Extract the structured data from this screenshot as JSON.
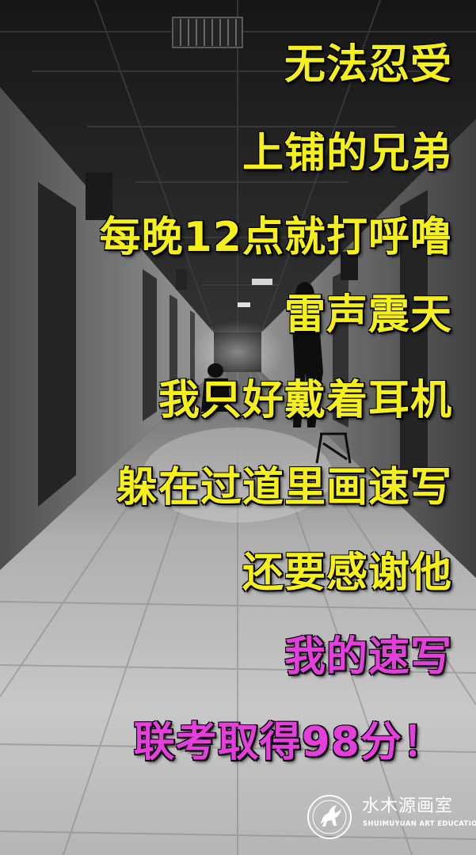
{
  "lines": [
    {
      "text": "无法忍受",
      "color": "#f5ef1c"
    },
    {
      "text": "上铺的兄弟",
      "color": "#f5ef1c"
    },
    {
      "text": "每晚12点就打呼噜",
      "color": "#f5ef1c"
    },
    {
      "text": "雷声震天",
      "color": "#f5ef1c"
    },
    {
      "text": "我只好戴着耳机",
      "color": "#f5ef1c"
    },
    {
      "text": "躲在过道里画速写",
      "color": "#f5ef1c"
    },
    {
      "text": "还要感谢他",
      "color": "#f5ef1c"
    },
    {
      "text": "我的速写",
      "color": "#e43fdc"
    },
    {
      "text": "联考取得98分！",
      "color": "#e43fdc"
    }
  ],
  "logo": {
    "name_cn": "水木源画室",
    "name_en": "SHUIMUYUAN ART EDUCATION",
    "emblem": "pegasus-emblem-icon"
  },
  "background": {
    "description_icon": "corridor-photo",
    "tone": "black-and-white"
  }
}
